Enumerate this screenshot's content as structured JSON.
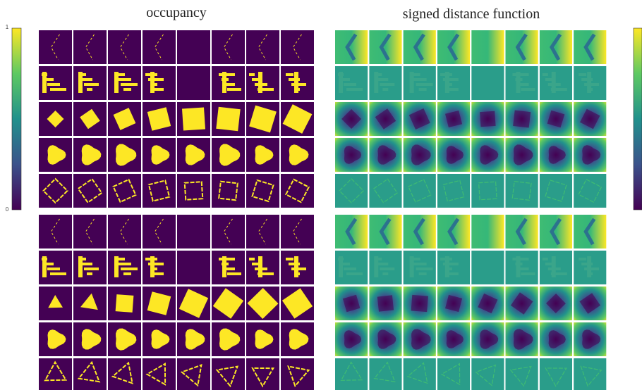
{
  "panels": [
    {
      "title": "occupancy"
    },
    {
      "title": "signed distance function"
    }
  ],
  "colorbar": {
    "ticks": [
      1,
      0
    ]
  }
}
